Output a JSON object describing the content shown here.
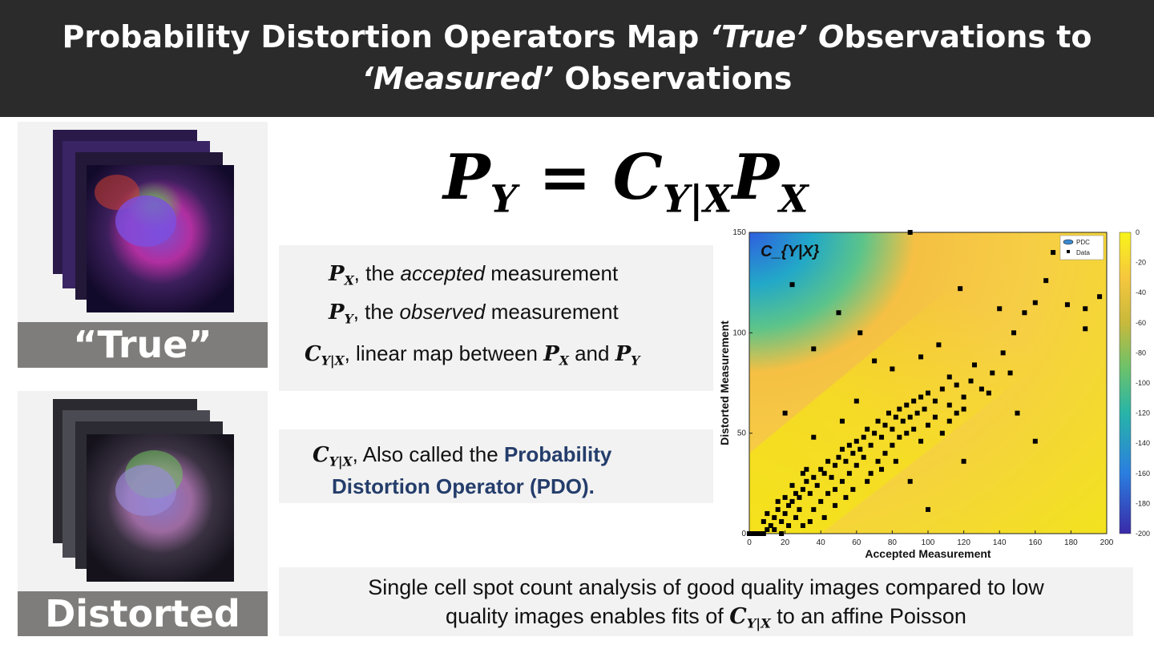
{
  "title": {
    "line1_a": "Probability Distortion Operators Map ",
    "line1_true": "‘True’ O",
    "line1_b": "bservations to",
    "line2_measured": "‘Measured’",
    "line2_b": " Observations"
  },
  "equation": {
    "lhs": "P",
    "lhs_sub": "Y",
    "eq": " = ",
    "c": "C",
    "c_sub": "Y|X",
    "p": "P",
    "p_sub": "X"
  },
  "definitions": {
    "px_sym": "P",
    "px_sub": "X",
    "px_a": ", the ",
    "px_it": "accepted",
    "px_b": " measurement",
    "py_sym": "P",
    "py_sub": "Y",
    "py_a": ", the ",
    "py_it": "observed",
    "py_b": " measurement",
    "c_sym": "C",
    "c_sub": "Y|X",
    "c_a": ", linear map between ",
    "c_px": "P",
    "c_px_sub": "X",
    "c_and": " and ",
    "c_py": "P",
    "c_py_sub": "Y"
  },
  "pdo_box": {
    "c_sym": "C",
    "c_sub": "Y|X",
    "text_a": ", Also called the ",
    "highlight_1": "Probability",
    "highlight_2": "Distortion Operator (PDO)."
  },
  "bottom_box": {
    "line1": "Single cell spot count analysis of good quality images compared to low",
    "line2_a": "quality images enables fits of ",
    "c_sym": "C",
    "c_sub": "Y|X",
    "line2_b": " to an affine Poisson"
  },
  "labels": {
    "true_label": "“True”",
    "distorted_label": "Distorted"
  },
  "colors": {
    "title_bg": "#2b2b2b",
    "panel_bg": "#f2f2f2",
    "label_bg": "#7f7d7b",
    "highlight_blue": "#243d6b",
    "heatmap_high": "#f2e41c",
    "heatmap_mid": "#f5b335",
    "heatmap_low": "#3b5ee0",
    "point_color": "#000000"
  },
  "chart_data": {
    "type": "heatmap",
    "title": "",
    "overlay_label": "C_{Y|X}",
    "xlabel": "Accepted Measurement",
    "ylabel": "Distorted Measurement",
    "xlim": [
      0,
      200
    ],
    "ylim": [
      0,
      150
    ],
    "xticks": [
      "0",
      "20",
      "40",
      "60",
      "80",
      "100",
      "120",
      "140",
      "160",
      "180",
      "200"
    ],
    "yticks": [
      "0",
      "50",
      "100",
      "150"
    ],
    "colorbar": {
      "range": [
        -200,
        0
      ],
      "ticks": [
        "0",
        "-20",
        "-40",
        "-60",
        "-80",
        "-100",
        "-120",
        "-140",
        "-160",
        "-180",
        "-200"
      ]
    },
    "legend": {
      "position": "top-right",
      "entries": [
        "PDC",
        "Data"
      ]
    },
    "series": [
      {
        "type": "scatter",
        "points": [
          [
            0,
            0
          ],
          [
            2,
            0
          ],
          [
            4,
            0
          ],
          [
            6,
            0
          ],
          [
            8,
            0
          ],
          [
            10,
            2
          ],
          [
            12,
            4
          ],
          [
            8,
            6
          ],
          [
            14,
            8
          ],
          [
            10,
            10
          ],
          [
            16,
            12
          ],
          [
            18,
            6
          ],
          [
            20,
            10
          ],
          [
            22,
            14
          ],
          [
            24,
            16
          ],
          [
            20,
            18
          ],
          [
            26,
            20
          ],
          [
            28,
            18
          ],
          [
            30,
            22
          ],
          [
            24,
            24
          ],
          [
            32,
            26
          ],
          [
            34,
            20
          ],
          [
            36,
            28
          ],
          [
            30,
            30
          ],
          [
            38,
            24
          ],
          [
            40,
            32
          ],
          [
            42,
            30
          ],
          [
            44,
            36
          ],
          [
            46,
            28
          ],
          [
            48,
            34
          ],
          [
            50,
            38
          ],
          [
            52,
            42
          ],
          [
            54,
            36
          ],
          [
            56,
            44
          ],
          [
            58,
            40
          ],
          [
            60,
            46
          ],
          [
            62,
            42
          ],
          [
            64,
            48
          ],
          [
            66,
            52
          ],
          [
            68,
            44
          ],
          [
            70,
            50
          ],
          [
            72,
            56
          ],
          [
            74,
            48
          ],
          [
            76,
            54
          ],
          [
            78,
            60
          ],
          [
            80,
            52
          ],
          [
            82,
            58
          ],
          [
            84,
            62
          ],
          [
            86,
            56
          ],
          [
            88,
            64
          ],
          [
            90,
            58
          ],
          [
            92,
            66
          ],
          [
            94,
            60
          ],
          [
            96,
            68
          ],
          [
            98,
            62
          ],
          [
            100,
            70
          ],
          [
            104,
            66
          ],
          [
            108,
            72
          ],
          [
            112,
            64
          ],
          [
            116,
            74
          ],
          [
            120,
            68
          ],
          [
            124,
            76
          ],
          [
            130,
            72
          ],
          [
            136,
            80
          ],
          [
            142,
            90
          ],
          [
            148,
            100
          ],
          [
            154,
            110
          ],
          [
            160,
            115
          ],
          [
            166,
            126
          ],
          [
            170,
            140
          ],
          [
            188,
            112
          ],
          [
            196,
            118
          ],
          [
            14,
            2
          ],
          [
            18,
            0
          ],
          [
            22,
            4
          ],
          [
            26,
            8
          ],
          [
            16,
            16
          ],
          [
            28,
            12
          ],
          [
            32,
            32
          ],
          [
            36,
            12
          ],
          [
            40,
            16
          ],
          [
            44,
            20
          ],
          [
            48,
            22
          ],
          [
            52,
            26
          ],
          [
            56,
            30
          ],
          [
            60,
            34
          ],
          [
            64,
            38
          ],
          [
            68,
            30
          ],
          [
            72,
            36
          ],
          [
            76,
            40
          ],
          [
            80,
            44
          ],
          [
            84,
            48
          ],
          [
            88,
            50
          ],
          [
            92,
            52
          ],
          [
            96,
            46
          ],
          [
            100,
            54
          ],
          [
            104,
            58
          ],
          [
            108,
            50
          ],
          [
            112,
            56
          ],
          [
            116,
            60
          ],
          [
            120,
            62
          ],
          [
            20,
            60
          ],
          [
            24,
            124
          ],
          [
            36,
            92
          ],
          [
            50,
            110
          ],
          [
            62,
            100
          ],
          [
            70,
            86
          ],
          [
            90,
            150
          ],
          [
            118,
            122
          ],
          [
            140,
            112
          ],
          [
            146,
            80
          ],
          [
            150,
            60
          ],
          [
            160,
            46
          ],
          [
            178,
            114
          ],
          [
            188,
            102
          ],
          [
            100,
            12
          ],
          [
            120,
            36
          ],
          [
            36,
            48
          ],
          [
            52,
            56
          ],
          [
            60,
            66
          ],
          [
            80,
            82
          ],
          [
            96,
            88
          ],
          [
            106,
            94
          ],
          [
            112,
            78
          ],
          [
            126,
            84
          ],
          [
            134,
            70
          ],
          [
            30,
            4
          ],
          [
            34,
            6
          ],
          [
            42,
            8
          ],
          [
            48,
            14
          ],
          [
            54,
            18
          ],
          [
            58,
            22
          ],
          [
            66,
            26
          ],
          [
            74,
            32
          ],
          [
            82,
            36
          ],
          [
            90,
            26
          ]
        ]
      }
    ]
  }
}
